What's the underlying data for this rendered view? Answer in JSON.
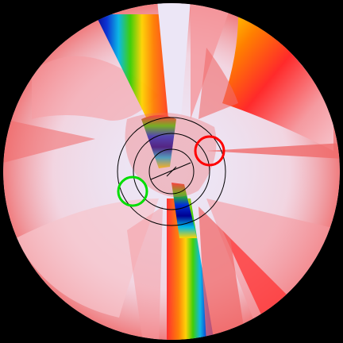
{
  "view": {
    "background_color": "#000000",
    "field_base_color": "#ece6f6",
    "colormap": [
      "#ece6f6",
      "#f7c4cc",
      "#f59aa0",
      "#f06a6a",
      "#ff2a2a",
      "#ff7f00",
      "#ffd400",
      "#cfe800",
      "#36d000",
      "#00a070",
      "#00b8e8",
      "#0030d8",
      "#000090"
    ],
    "reticle_color": "#000000",
    "markers": [
      {
        "name": "red-marker-circle",
        "color": "#ff0000"
      },
      {
        "name": "green-marker-circle",
        "color": "#00dd00"
      }
    ]
  }
}
